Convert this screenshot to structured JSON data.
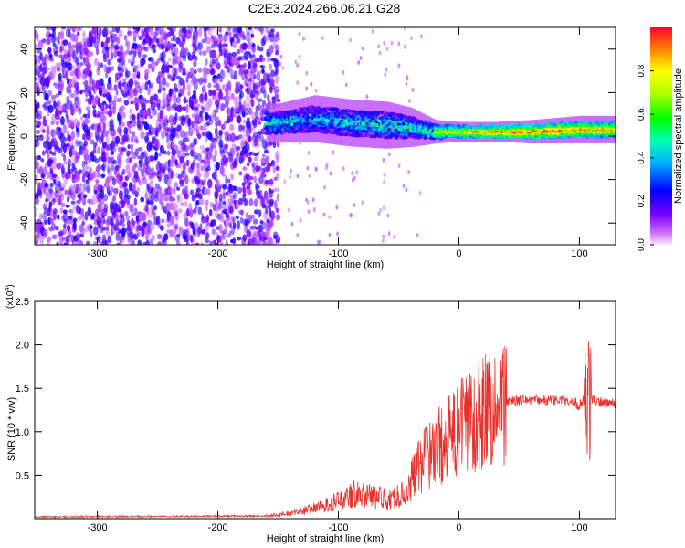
{
  "title": "C2E3.2024.266.06.21.G28",
  "chart_data": [
    {
      "type": "heatmap",
      "xlabel": "Height of straight line (km)",
      "ylabel": "Frequency (Hz)",
      "xlim": [
        -352,
        130
      ],
      "ylim": [
        -50,
        50
      ],
      "xticks": [
        -300,
        -200,
        -100,
        0,
        100
      ],
      "yticks": [
        -40,
        -20,
        0,
        20,
        40
      ],
      "xtick_labels": [
        "-300",
        "-200",
        "-100",
        "0",
        "100"
      ],
      "ytick_labels": [
        "-40",
        "-20",
        "0",
        "20",
        "40"
      ],
      "colorbar": {
        "label": "Normalized spectral amplitude",
        "range": [
          0,
          1
        ],
        "ticks": [
          0.0,
          0.2,
          0.4,
          0.6,
          0.8
        ],
        "tick_labels": [
          "0.0",
          "0.2",
          "0.4",
          "0.6",
          "0.8"
        ]
      },
      "signal_band": [
        {
          "x": -150,
          "center": 6,
          "halfwidth": 5,
          "amp": 0.5
        },
        {
          "x": -120,
          "center": 8,
          "halfwidth": 6,
          "amp": 0.45
        },
        {
          "x": -90,
          "center": 6,
          "halfwidth": 6,
          "amp": 0.5
        },
        {
          "x": -60,
          "center": 5,
          "halfwidth": 6,
          "amp": 0.55
        },
        {
          "x": -40,
          "center": 4,
          "halfwidth": 5,
          "amp": 0.55
        },
        {
          "x": -20,
          "center": 2,
          "halfwidth": 3,
          "amp": 0.7
        },
        {
          "x": 0,
          "center": 2,
          "halfwidth": 2.5,
          "amp": 0.8
        },
        {
          "x": 30,
          "center": 2,
          "halfwidth": 2.5,
          "amp": 0.95
        },
        {
          "x": 60,
          "center": 2,
          "halfwidth": 3,
          "amp": 0.95
        },
        {
          "x": 100,
          "center": 3,
          "halfwidth": 3.5,
          "amp": 0.9
        },
        {
          "x": 130,
          "center": 3,
          "halfwidth": 3.5,
          "amp": 0.85
        }
      ]
    },
    {
      "type": "line",
      "xlabel": "Height of straight line (km)",
      "ylabel": "SNR (10 * v/v)",
      "y_multiplier": "(x10",
      "y_multiplier_exp": "4",
      "xlim": [
        -352,
        130
      ],
      "ylim": [
        0,
        2.5
      ],
      "xticks": [
        -300,
        -200,
        -100,
        0,
        100
      ],
      "yticks": [
        0.5,
        1.0,
        1.5,
        2.0,
        2.5
      ],
      "xtick_labels": [
        "-300",
        "-200",
        "-100",
        "0",
        "100"
      ],
      "ytick_labels": [
        "0.5",
        "1.0",
        "1.5",
        "2.0",
        "2.5"
      ],
      "series_color": "#e8322e",
      "envelope": {
        "x": [
          -352,
          -160,
          -140,
          -120,
          -100,
          -85,
          -70,
          -55,
          -45,
          -35,
          -25,
          -15,
          -5,
          5,
          20,
          40,
          60,
          80,
          95,
          100,
          105,
          108,
          112,
          130
        ],
        "y": [
          0.02,
          0.03,
          0.06,
          0.12,
          0.2,
          0.3,
          0.25,
          0.22,
          0.3,
          0.55,
          0.75,
          0.85,
          0.95,
          1.1,
          1.25,
          1.35,
          1.37,
          1.36,
          1.35,
          1.3,
          1.4,
          1.4,
          1.35,
          1.33
        ]
      }
    }
  ]
}
